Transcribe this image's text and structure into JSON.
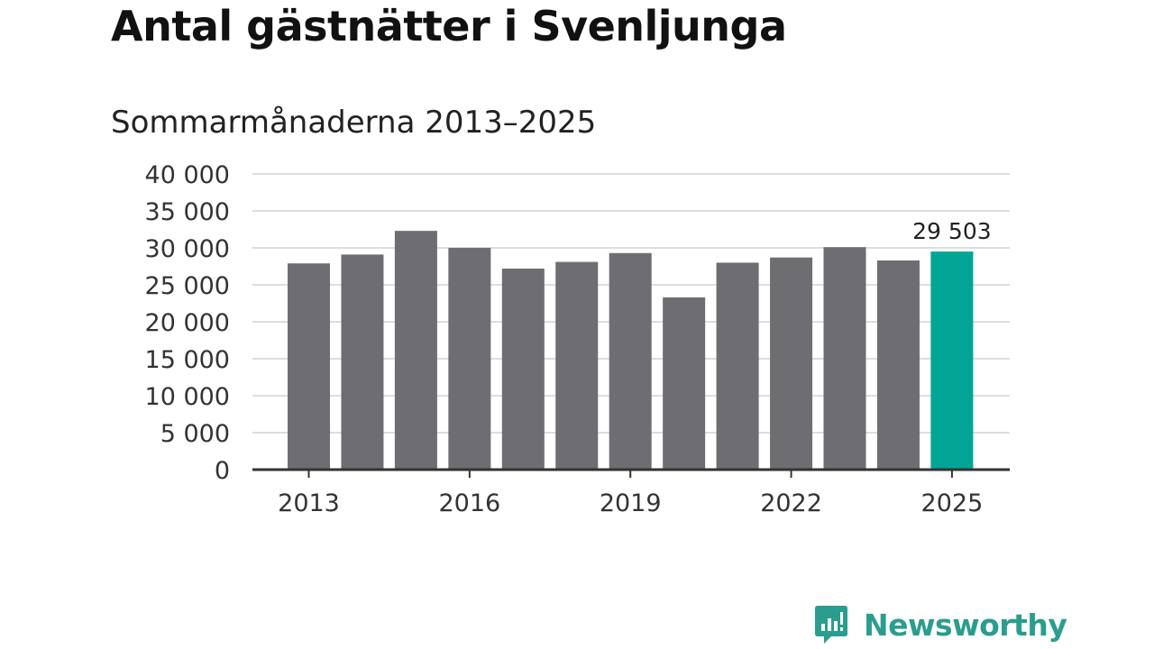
{
  "title": "Antal gästnätter i Svenljunga",
  "subtitle": "Sommarmånaderna 2013–2025",
  "logo_text": "Newsworthy",
  "colors": {
    "bar": "#6e6d72",
    "highlight": "#00a595",
    "grid": "#dddddd",
    "axis": "#333333",
    "logo": "#2a9d8f"
  },
  "chart_data": {
    "type": "bar",
    "categories": [
      "2013",
      "2014",
      "2015",
      "2016",
      "2017",
      "2018",
      "2019",
      "2020",
      "2021",
      "2022",
      "2023",
      "2024",
      "2025"
    ],
    "values": [
      27900,
      29100,
      32300,
      30000,
      27200,
      28100,
      29300,
      23300,
      28000,
      28700,
      30100,
      28300,
      29503
    ],
    "highlight_index": 12,
    "data_labels": [
      {
        "index": 12,
        "text": "29 503"
      }
    ],
    "x_tick_labels": [
      "2013",
      "2016",
      "2019",
      "2022",
      "2025"
    ],
    "y_tick_labels": [
      "0",
      "5 000",
      "10 000",
      "15 000",
      "20 000",
      "25 000",
      "30 000",
      "35 000",
      "40 000"
    ],
    "y_ticks": [
      0,
      5000,
      10000,
      15000,
      20000,
      25000,
      30000,
      35000,
      40000
    ],
    "ylim": [
      0,
      40000
    ],
    "grid": true,
    "legend": "none"
  }
}
